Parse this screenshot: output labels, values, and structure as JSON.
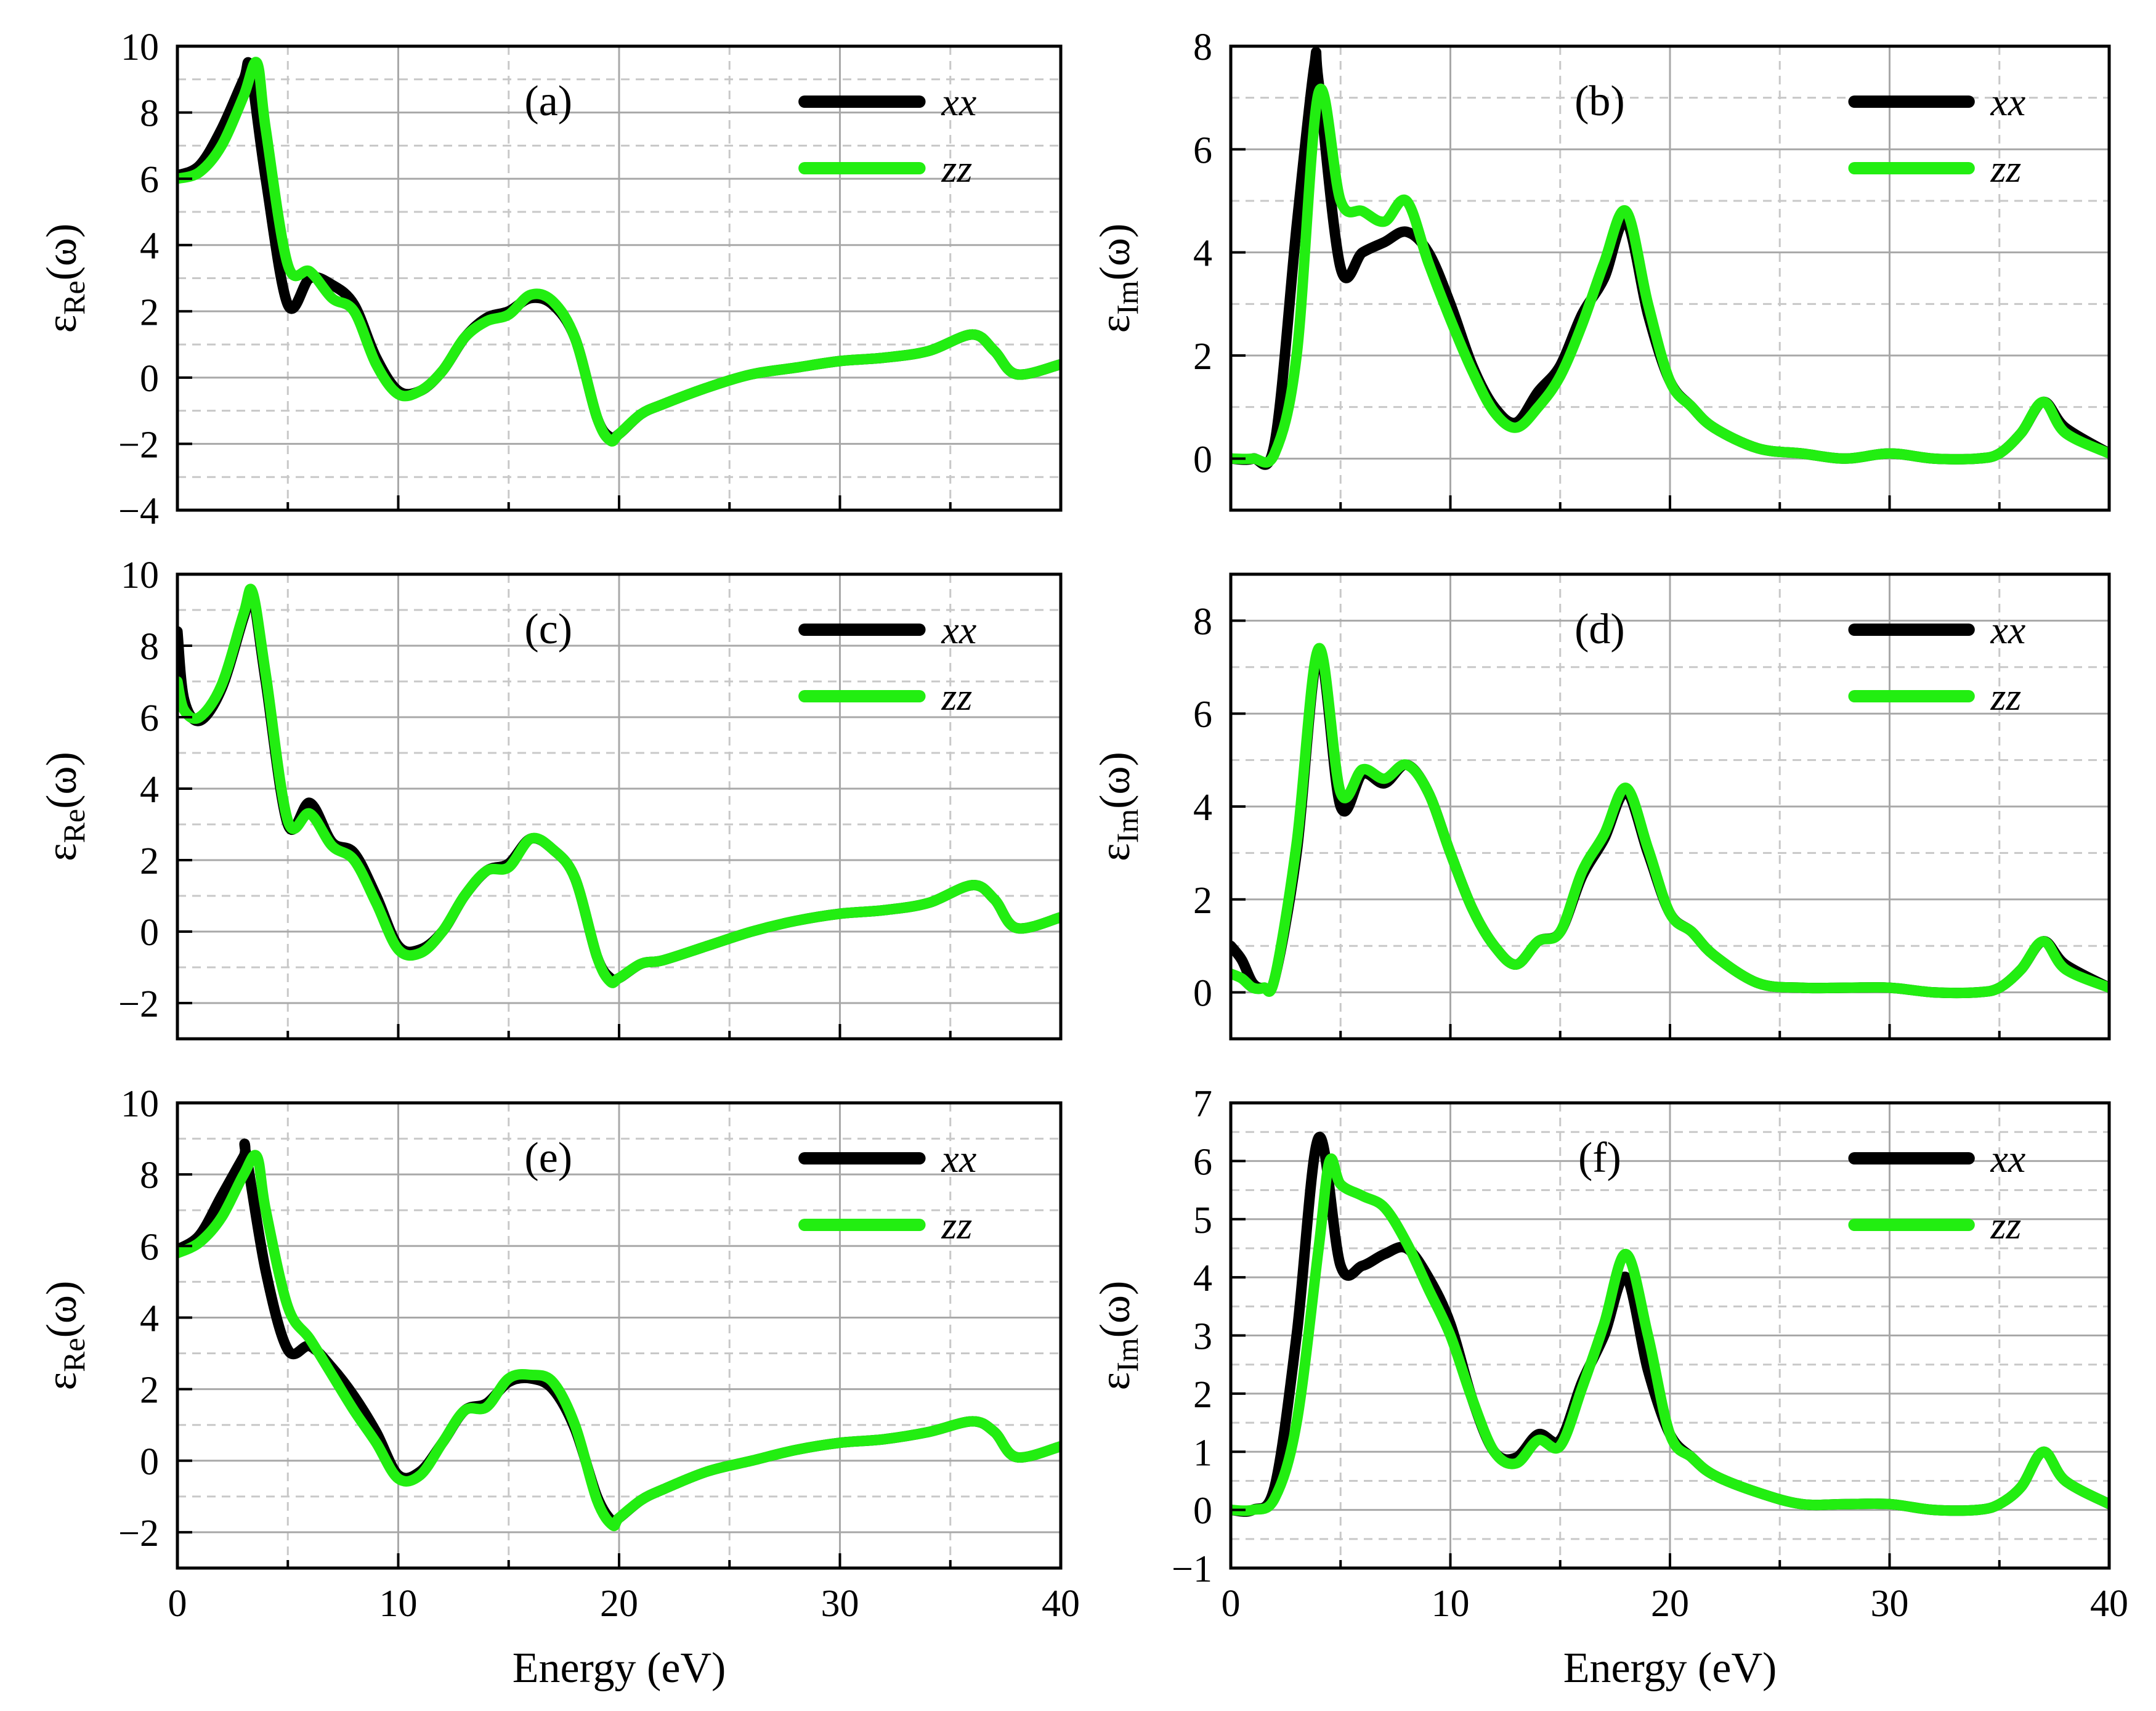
{
  "figure": {
    "xlabel": "Energy (eV)"
  },
  "colors": {
    "xx": "#000000",
    "zz": "#22ee11"
  },
  "legend": [
    "xx",
    "zz"
  ],
  "chart_data": [
    {
      "type": "line",
      "label": "(a)",
      "ylabel_base": "ε",
      "ylabel_sub": "Re",
      "ylabel_tail": "(ω)",
      "xlim": [
        0,
        40
      ],
      "ylim": [
        -4,
        10
      ],
      "yticks": [
        -4,
        -2,
        0,
        2,
        4,
        6,
        8,
        10
      ],
      "xticks": [
        0,
        10,
        20,
        30,
        40
      ],
      "series": [
        {
          "name": "xx",
          "x": [
            0,
            1,
            2,
            3,
            3.3,
            4,
            5,
            6,
            7,
            8,
            9,
            10,
            11,
            12,
            13,
            14,
            15,
            16,
            17,
            18,
            19,
            19.6,
            20,
            21,
            22,
            24,
            26,
            28,
            30,
            32,
            34,
            36,
            37,
            38,
            40
          ],
          "y": [
            6.1,
            6.4,
            7.5,
            9.0,
            9.3,
            6.0,
            2.2,
            3.0,
            2.8,
            2.2,
            0.6,
            -0.4,
            -0.4,
            0.2,
            1.2,
            1.8,
            2.0,
            2.4,
            2.2,
            1.2,
            -1.2,
            -1.8,
            -1.7,
            -1.1,
            -0.8,
            -0.3,
            0.1,
            0.3,
            0.5,
            0.6,
            0.8,
            1.3,
            0.8,
            0.1,
            0.4
          ]
        },
        {
          "name": "zz",
          "x": [
            0,
            1,
            2,
            3,
            3.6,
            4,
            5,
            6,
            7,
            8,
            9,
            10,
            11,
            12,
            13,
            14,
            15,
            16,
            17,
            18,
            19,
            19.6,
            20,
            21,
            22,
            24,
            26,
            28,
            30,
            32,
            34,
            36,
            37,
            38,
            40
          ],
          "y": [
            6.0,
            6.2,
            7.0,
            8.5,
            9.5,
            7.5,
            3.4,
            3.2,
            2.4,
            2.0,
            0.4,
            -0.5,
            -0.4,
            0.2,
            1.2,
            1.7,
            1.9,
            2.5,
            2.3,
            1.2,
            -1.2,
            -1.9,
            -1.7,
            -1.1,
            -0.8,
            -0.3,
            0.1,
            0.3,
            0.5,
            0.6,
            0.8,
            1.3,
            0.8,
            0.1,
            0.4
          ]
        }
      ]
    },
    {
      "type": "line",
      "label": "(b)",
      "ylabel_base": "ε",
      "ylabel_sub": "Im",
      "ylabel_tail": "(ω)",
      "xlim": [
        0,
        40
      ],
      "ylim": [
        -1,
        8
      ],
      "yticks": [
        0,
        2,
        4,
        6,
        8
      ],
      "xticks": [
        0,
        10,
        20,
        30,
        40
      ],
      "series": [
        {
          "name": "xx",
          "x": [
            0,
            1,
            2,
            3,
            3.8,
            4,
            5,
            6,
            7,
            8,
            9,
            10,
            11,
            12,
            13,
            14,
            15,
            16,
            17,
            18,
            19,
            20,
            21,
            22,
            24,
            26,
            28,
            30,
            32,
            34,
            35,
            36,
            37,
            38,
            40
          ],
          "y": [
            0,
            0,
            0.3,
            4.5,
            7.6,
            7.3,
            3.7,
            4.0,
            4.2,
            4.4,
            4.0,
            3.0,
            1.8,
            1.0,
            0.7,
            1.3,
            1.8,
            2.8,
            3.5,
            4.6,
            2.8,
            1.5,
            1.0,
            0.6,
            0.2,
            0.1,
            0,
            0.1,
            0,
            0,
            0.1,
            0.5,
            1.1,
            0.6,
            0.1
          ]
        },
        {
          "name": "zz",
          "x": [
            0,
            1,
            2,
            3,
            4,
            5,
            6,
            7,
            8,
            9,
            10,
            11,
            12,
            13,
            14,
            15,
            16,
            17,
            18,
            19,
            20,
            21,
            22,
            24,
            26,
            28,
            30,
            32,
            34,
            35,
            36,
            37,
            38,
            40
          ],
          "y": [
            0,
            0,
            0.1,
            2.0,
            7.1,
            5.0,
            4.8,
            4.6,
            5.0,
            3.8,
            2.7,
            1.7,
            0.9,
            0.6,
            1.0,
            1.6,
            2.6,
            3.8,
            4.8,
            3.0,
            1.5,
            1.0,
            0.6,
            0.2,
            0.1,
            0,
            0.1,
            0,
            0,
            0.1,
            0.5,
            1.1,
            0.5,
            0.1
          ]
        }
      ]
    },
    {
      "type": "line",
      "label": "(c)",
      "ylabel_base": "ε",
      "ylabel_sub": "Re",
      "ylabel_tail": "(ω)",
      "xlim": [
        0,
        40
      ],
      "ylim": [
        -3,
        10
      ],
      "yticks": [
        -2,
        0,
        2,
        4,
        6,
        8,
        10
      ],
      "xticks": [
        0,
        10,
        20,
        30,
        40
      ],
      "series": [
        {
          "name": "xx",
          "x": [
            0,
            0.3,
            1,
            2,
            3,
            3.4,
            4,
            5,
            6,
            7,
            8,
            9,
            10,
            11,
            12,
            13,
            14,
            15,
            16,
            17,
            18,
            19,
            19.6,
            20,
            21,
            22,
            24,
            26,
            28,
            30,
            32,
            34,
            36,
            37,
            38,
            40
          ],
          "y": [
            8.4,
            6.5,
            5.9,
            6.8,
            8.8,
            9.4,
            7.0,
            3.0,
            3.6,
            2.5,
            2.2,
            1.0,
            -0.4,
            -0.5,
            0,
            1.0,
            1.7,
            1.9,
            2.6,
            2.3,
            1.5,
            -0.7,
            -1.3,
            -1.3,
            -0.9,
            -0.8,
            -0.4,
            0,
            0.3,
            0.5,
            0.6,
            0.8,
            1.3,
            0.9,
            0.1,
            0.4
          ]
        },
        {
          "name": "zz",
          "x": [
            0,
            0.3,
            1,
            2,
            3,
            3.4,
            4,
            5,
            6,
            7,
            8,
            9,
            10,
            11,
            12,
            13,
            14,
            15,
            16,
            17,
            18,
            19,
            19.6,
            20,
            21,
            22,
            24,
            26,
            28,
            30,
            32,
            34,
            36,
            37,
            38,
            40
          ],
          "y": [
            7.0,
            6.2,
            6.0,
            6.9,
            8.9,
            9.5,
            7.2,
            3.1,
            3.3,
            2.4,
            2.0,
            0.8,
            -0.5,
            -0.6,
            0,
            1.0,
            1.7,
            1.8,
            2.6,
            2.3,
            1.5,
            -0.7,
            -1.4,
            -1.3,
            -0.9,
            -0.8,
            -0.4,
            0,
            0.3,
            0.5,
            0.6,
            0.8,
            1.3,
            0.9,
            0.1,
            0.4
          ]
        }
      ]
    },
    {
      "type": "line",
      "label": "(d)",
      "ylabel_base": "ε",
      "ylabel_sub": "Im",
      "ylabel_tail": "(ω)",
      "xlim": [
        0,
        40
      ],
      "ylim": [
        -1,
        9
      ],
      "yticks": [
        0,
        2,
        4,
        6,
        8
      ],
      "xticks": [
        0,
        10,
        20,
        30,
        40
      ],
      "series": [
        {
          "name": "xx",
          "x": [
            0,
            0.5,
            1,
            1.5,
            2,
            3,
            4,
            5,
            6,
            7,
            8,
            9,
            10,
            11,
            12,
            13,
            14,
            15,
            16,
            17,
            18,
            19,
            20,
            21,
            22,
            24,
            26,
            28,
            30,
            32,
            34,
            35,
            36,
            37,
            38,
            40
          ],
          "y": [
            1.0,
            0.7,
            0.2,
            0.1,
            0.3,
            3.0,
            7.3,
            4.0,
            4.7,
            4.5,
            4.9,
            4.3,
            3.0,
            1.8,
            1.0,
            0.6,
            1.1,
            1.3,
            2.5,
            3.3,
            4.3,
            3.0,
            1.7,
            1.3,
            0.8,
            0.2,
            0.1,
            0.1,
            0.1,
            0,
            0,
            0.1,
            0.5,
            1.1,
            0.6,
            0.1
          ]
        },
        {
          "name": "zz",
          "x": [
            0,
            0.5,
            1,
            1.5,
            2,
            3,
            4,
            5,
            6,
            7,
            8,
            9,
            10,
            11,
            12,
            13,
            14,
            15,
            16,
            17,
            18,
            19,
            20,
            21,
            22,
            24,
            26,
            28,
            30,
            32,
            34,
            35,
            36,
            37,
            38,
            40
          ],
          "y": [
            0.4,
            0.3,
            0.1,
            0.1,
            0.3,
            3.2,
            7.4,
            4.3,
            4.8,
            4.6,
            4.9,
            4.3,
            3.0,
            1.8,
            1.0,
            0.6,
            1.1,
            1.3,
            2.6,
            3.4,
            4.4,
            3.1,
            1.7,
            1.3,
            0.8,
            0.2,
            0.1,
            0.1,
            0.1,
            0,
            0,
            0.1,
            0.5,
            1.1,
            0.5,
            0.1
          ]
        }
      ]
    },
    {
      "type": "line",
      "label": "(e)",
      "ylabel_base": "ε",
      "ylabel_sub": "Re",
      "ylabel_tail": "(ω)",
      "xlim": [
        0,
        40
      ],
      "ylim": [
        -3,
        10
      ],
      "yticks": [
        -2,
        0,
        2,
        4,
        6,
        8,
        10
      ],
      "xticks": [
        0,
        10,
        20,
        30,
        40
      ],
      "series": [
        {
          "name": "xx",
          "x": [
            0,
            1,
            2,
            3,
            3.1,
            4,
            5,
            6,
            7,
            8,
            9,
            10,
            11,
            12,
            13,
            14,
            15,
            16,
            17,
            18,
            19,
            19.7,
            20,
            21,
            22,
            24,
            26,
            28,
            30,
            32,
            34,
            36,
            37,
            38,
            40
          ],
          "y": [
            5.9,
            6.3,
            7.4,
            8.5,
            8.6,
            5.3,
            3.1,
            3.2,
            2.6,
            1.8,
            0.8,
            -0.4,
            -0.3,
            0.5,
            1.4,
            1.6,
            2.2,
            2.3,
            2.0,
            0.9,
            -1.0,
            -1.7,
            -1.6,
            -1.1,
            -0.8,
            -0.3,
            0,
            0.3,
            0.5,
            0.6,
            0.8,
            1.1,
            0.8,
            0.1,
            0.4
          ]
        },
        {
          "name": "zz",
          "x": [
            0,
            1,
            2,
            3,
            3.6,
            4,
            5,
            6,
            7,
            8,
            9,
            10,
            11,
            12,
            13,
            14,
            15,
            16,
            17,
            18,
            19,
            19.7,
            20,
            21,
            22,
            24,
            26,
            28,
            30,
            32,
            34,
            36,
            37,
            38,
            40
          ],
          "y": [
            5.8,
            6.1,
            6.8,
            8.0,
            8.5,
            7.0,
            4.3,
            3.4,
            2.4,
            1.4,
            0.5,
            -0.5,
            -0.4,
            0.5,
            1.4,
            1.5,
            2.3,
            2.4,
            2.2,
            1.0,
            -1.1,
            -1.8,
            -1.6,
            -1.1,
            -0.8,
            -0.3,
            0,
            0.3,
            0.5,
            0.6,
            0.8,
            1.1,
            0.8,
            0.1,
            0.4
          ]
        }
      ]
    },
    {
      "type": "line",
      "label": "(f)",
      "ylabel_base": "ε",
      "ylabel_sub": "Im",
      "ylabel_tail": "(ω)",
      "xlim": [
        0,
        40
      ],
      "ylim": [
        -1,
        7
      ],
      "yticks": [
        -1,
        0,
        1,
        2,
        3,
        4,
        5,
        6,
        7
      ],
      "xticks": [
        0,
        10,
        20,
        30,
        40
      ],
      "series": [
        {
          "name": "xx",
          "x": [
            0,
            1,
            2,
            3,
            4,
            5,
            6,
            7,
            8,
            9,
            10,
            11,
            12,
            13,
            14,
            15,
            16,
            17,
            18,
            19,
            20,
            21,
            22,
            24,
            26,
            28,
            30,
            32,
            34,
            35,
            36,
            37,
            38,
            40
          ],
          "y": [
            0,
            0,
            0.4,
            3.0,
            6.4,
            4.2,
            4.2,
            4.4,
            4.5,
            4.0,
            3.2,
            1.9,
            1.0,
            0.9,
            1.3,
            1.2,
            2.2,
            3.0,
            4.0,
            2.4,
            1.3,
            0.9,
            0.6,
            0.3,
            0.1,
            0.1,
            0.1,
            0,
            0,
            0.1,
            0.4,
            1.0,
            0.5,
            0.1
          ]
        },
        {
          "name": "zz",
          "x": [
            0,
            1,
            2,
            3,
            4,
            4.5,
            5,
            6,
            7,
            8,
            9,
            10,
            11,
            12,
            13,
            14,
            15,
            16,
            17,
            18,
            19,
            20,
            21,
            22,
            24,
            26,
            28,
            30,
            32,
            34,
            35,
            36,
            37,
            38,
            40
          ],
          "y": [
            0,
            0,
            0.2,
            1.5,
            4.5,
            6.0,
            5.6,
            5.4,
            5.2,
            4.6,
            3.8,
            3.0,
            1.9,
            1.0,
            0.8,
            1.2,
            1.1,
            2.1,
            3.2,
            4.4,
            3.0,
            1.3,
            0.9,
            0.6,
            0.3,
            0.1,
            0.1,
            0.1,
            0,
            0,
            0.1,
            0.4,
            1.0,
            0.5,
            0.1
          ]
        }
      ]
    }
  ]
}
